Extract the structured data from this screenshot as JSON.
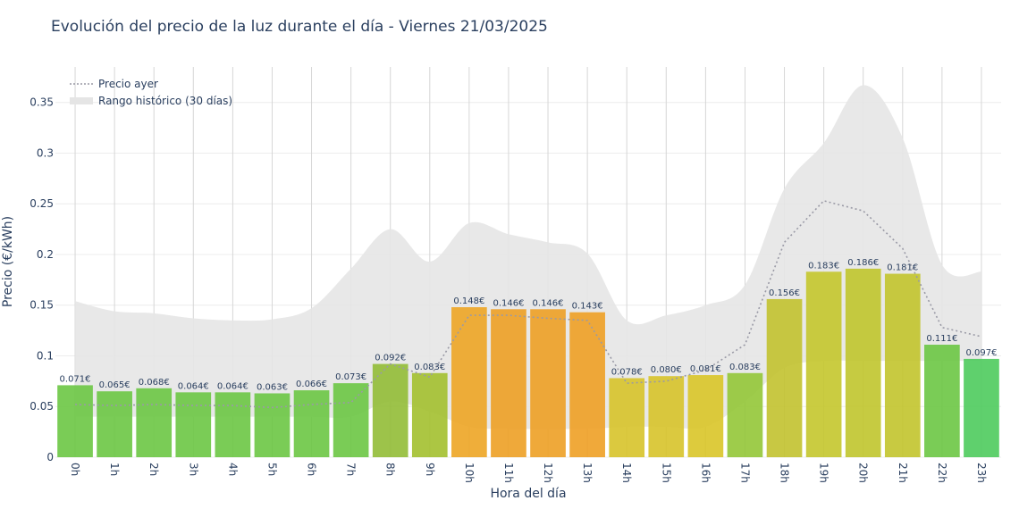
{
  "chart_data": {
    "type": "bar",
    "title": "Evolución del precio de la luz durante el día - Viernes 21/03/2025",
    "xlabel": "Hora del día",
    "ylabel": "Precio (€/kWh)",
    "ylim": [
      0,
      0.385
    ],
    "yticks": [
      0,
      0.05,
      0.1,
      0.15,
      0.2,
      0.25,
      0.3,
      0.35
    ],
    "ytick_labels": [
      "0",
      "0.05",
      "0.1",
      "0.15",
      "0.2",
      "0.25",
      "0.3",
      "0.35"
    ],
    "grid": true,
    "legend_position": "top-left",
    "categories": [
      "0h",
      "1h",
      "2h",
      "3h",
      "4h",
      "5h",
      "6h",
      "7h",
      "8h",
      "9h",
      "10h",
      "11h",
      "12h",
      "13h",
      "14h",
      "15h",
      "16h",
      "17h",
      "18h",
      "19h",
      "20h",
      "21h",
      "22h",
      "23h"
    ],
    "series": [
      {
        "type": "bar",
        "values": [
          0.071,
          0.065,
          0.068,
          0.064,
          0.064,
          0.063,
          0.066,
          0.073,
          0.092,
          0.083,
          0.148,
          0.146,
          0.146,
          0.143,
          0.078,
          0.08,
          0.081,
          0.083,
          0.156,
          0.183,
          0.186,
          0.181,
          0.111,
          0.097
        ],
        "labels": [
          "0.071€",
          "0.065€",
          "0.068€",
          "0.064€",
          "0.064€",
          "0.063€",
          "0.066€",
          "0.073€",
          "0.092€",
          "0.083€",
          "0.148€",
          "0.146€",
          "0.146€",
          "0.143€",
          "0.078€",
          "0.080€",
          "0.081€",
          "0.083€",
          "0.156€",
          "0.183€",
          "0.186€",
          "0.181€",
          "0.111€",
          "0.097€"
        ],
        "colors": [
          "#6cc744",
          "#6cc744",
          "#6cc744",
          "#6cc744",
          "#6cc744",
          "#6cc744",
          "#6cc744",
          "#6cc744",
          "#92bd36",
          "#a3c02f",
          "#eda525",
          "#eda025",
          "#eda025",
          "#eea025",
          "#d7c32a",
          "#d7c32a",
          "#d9c528",
          "#94c737",
          "#c2c22f",
          "#c4c62c",
          "#c0c52c",
          "#c2c42c",
          "#6cc744",
          "#4ecb5d"
        ]
      },
      {
        "name": "Precio ayer",
        "type": "line",
        "style": "dotted",
        "color": "#9a9aa6",
        "values": [
          0.052,
          0.051,
          0.052,
          0.051,
          0.051,
          0.049,
          0.052,
          0.054,
          0.092,
          0.079,
          0.14,
          0.14,
          0.137,
          0.135,
          0.073,
          0.075,
          0.086,
          0.111,
          0.212,
          0.253,
          0.243,
          0.206,
          0.128,
          0.119
        ]
      },
      {
        "name": "Rango histórico (30 días)",
        "type": "area",
        "color": "#e5e5e5",
        "upper": [
          0.154,
          0.144,
          0.142,
          0.137,
          0.135,
          0.136,
          0.147,
          0.186,
          0.225,
          0.193,
          0.231,
          0.22,
          0.212,
          0.201,
          0.135,
          0.14,
          0.15,
          0.17,
          0.265,
          0.31,
          0.367,
          0.315,
          0.19,
          0.183
        ],
        "lower": [
          0.04,
          0.04,
          0.04,
          0.04,
          0.04,
          0.04,
          0.04,
          0.04,
          0.055,
          0.045,
          0.03,
          0.028,
          0.028,
          0.028,
          0.03,
          0.03,
          0.03,
          0.055,
          0.088,
          0.095,
          0.095,
          0.095,
          0.095,
          0.095
        ]
      }
    ]
  }
}
